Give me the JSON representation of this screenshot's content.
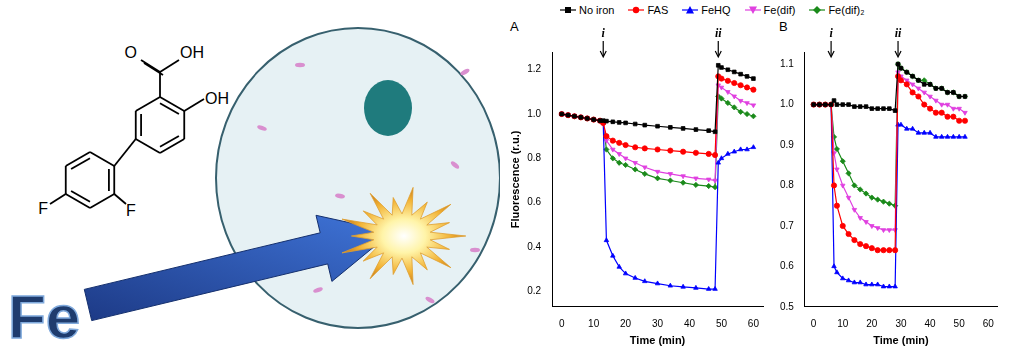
{
  "graphic": {
    "label": "Fe",
    "atoms": [
      "O",
      "OH",
      "OH",
      "F",
      "F"
    ]
  },
  "chart_data": [
    {
      "type": "line",
      "label": "A",
      "x_label": "Time (min)",
      "y_label": "Fluorescence (r.u.)",
      "grid": false,
      "xlim": [
        -3,
        63
      ],
      "xticks": [
        0,
        10,
        20,
        30,
        40,
        50,
        60
      ],
      "ylim": [
        0.13,
        1.28
      ],
      "yticks": [
        0.2,
        0.4,
        0.6,
        0.8,
        {
          "value": 1,
          "label": "1.0"
        },
        1.2
      ],
      "annotations": [
        {
          "text": "i",
          "x": 13
        },
        {
          "text": "ii",
          "x": 49
        }
      ],
      "x": [
        0,
        2,
        4,
        6,
        8,
        10,
        12,
        13,
        14,
        16,
        18,
        20,
        23,
        26,
        30,
        34,
        38,
        42,
        46,
        48,
        49,
        50,
        52,
        54,
        56,
        58,
        60
      ],
      "series": [
        {
          "name": "No iron",
          "color": "#000000",
          "marker": "square",
          "values": [
            1.0,
            0.995,
            0.99,
            0.985,
            0.98,
            0.975,
            0.97,
            0.97,
            0.968,
            0.965,
            0.962,
            0.96,
            0.955,
            0.95,
            0.945,
            0.94,
            0.935,
            0.93,
            0.925,
            0.92,
            1.22,
            1.21,
            1.2,
            1.19,
            1.18,
            1.17,
            1.16
          ]
        },
        {
          "name": "FAS",
          "color": "#ff0000",
          "marker": "circle",
          "values": [
            1.0,
            0.995,
            0.99,
            0.985,
            0.98,
            0.975,
            0.97,
            0.96,
            0.9,
            0.88,
            0.87,
            0.86,
            0.85,
            0.845,
            0.84,
            0.835,
            0.83,
            0.825,
            0.82,
            0.815,
            1.17,
            1.16,
            1.15,
            1.14,
            1.13,
            1.12,
            1.11
          ]
        },
        {
          "name": "FeHQ",
          "color": "#0000ff",
          "marker": "triangle",
          "values": [
            1.0,
            0.995,
            0.99,
            0.985,
            0.98,
            0.975,
            0.97,
            0.96,
            0.43,
            0.36,
            0.31,
            0.28,
            0.26,
            0.245,
            0.235,
            0.225,
            0.22,
            0.215,
            0.21,
            0.21,
            0.78,
            0.8,
            0.82,
            0.83,
            0.84,
            0.84,
            0.85
          ]
        },
        {
          "name": "Fe(dif)",
          "color": "#e040e0",
          "marker": "triangle_down",
          "values": [
            1.0,
            0.995,
            0.99,
            0.985,
            0.98,
            0.975,
            0.97,
            0.96,
            0.88,
            0.84,
            0.82,
            0.8,
            0.78,
            0.76,
            0.74,
            0.73,
            0.72,
            0.71,
            0.705,
            0.7,
            1.13,
            1.12,
            1.1,
            1.08,
            1.06,
            1.05,
            1.04
          ]
        },
        {
          "name": "Fe(dif)₂",
          "color": "#1a8a1a",
          "marker": "diamond",
          "values": [
            1.0,
            0.995,
            0.99,
            0.985,
            0.98,
            0.975,
            0.97,
            0.96,
            0.84,
            0.8,
            0.78,
            0.77,
            0.75,
            0.73,
            0.71,
            0.7,
            0.69,
            0.68,
            0.675,
            0.67,
            1.08,
            1.07,
            1.05,
            1.03,
            1.01,
            1.0,
            0.99
          ]
        }
      ]
    },
    {
      "type": "line",
      "label": "B",
      "x_label": "Time (min)",
      "grid": false,
      "legend": "top",
      "xlim": [
        -3,
        63
      ],
      "xticks": [
        0,
        10,
        20,
        30,
        40,
        50,
        60
      ],
      "ylim": [
        0.5,
        1.13
      ],
      "yticks": [
        0.5,
        0.6,
        0.7,
        0.8,
        0.9,
        {
          "value": 1,
          "label": "1.0"
        },
        1.1
      ],
      "annotations": [
        {
          "text": "i",
          "x": 6
        },
        {
          "text": "ii",
          "x": 29
        }
      ],
      "x": [
        0,
        2,
        4,
        6,
        7,
        8,
        10,
        12,
        14,
        16,
        18,
        20,
        22,
        24,
        26,
        28,
        29,
        30,
        32,
        34,
        36,
        38,
        40,
        42,
        44,
        46,
        48,
        50,
        52
      ],
      "series": [
        {
          "name": "No iron",
          "color": "#000000",
          "marker": "square",
          "values": [
            1.0,
            1.0,
            1.0,
            1.0,
            1.01,
            1.0,
            1.0,
            1.0,
            0.995,
            0.995,
            0.995,
            0.99,
            0.99,
            0.99,
            0.99,
            0.985,
            1.1,
            1.09,
            1.08,
            1.07,
            1.06,
            1.05,
            1.05,
            1.04,
            1.04,
            1.03,
            1.03,
            1.02,
            1.02
          ]
        },
        {
          "name": "FAS",
          "color": "#ff0000",
          "marker": "circle",
          "values": [
            1.0,
            1.0,
            1.0,
            1.0,
            0.8,
            0.75,
            0.7,
            0.68,
            0.665,
            0.655,
            0.65,
            0.645,
            0.64,
            0.64,
            0.64,
            0.64,
            1.07,
            1.06,
            1.05,
            1.03,
            1.02,
            1.0,
            0.99,
            0.98,
            0.98,
            0.97,
            0.97,
            0.96,
            0.96
          ]
        },
        {
          "name": "FeHQ",
          "color": "#0000ff",
          "marker": "triangle",
          "values": [
            1.0,
            1.0,
            1.0,
            1.0,
            0.6,
            0.585,
            0.57,
            0.565,
            0.56,
            0.56,
            0.555,
            0.555,
            0.555,
            0.55,
            0.55,
            0.55,
            0.95,
            0.95,
            0.94,
            0.94,
            0.93,
            0.93,
            0.93,
            0.92,
            0.92,
            0.92,
            0.92,
            0.92,
            0.92
          ]
        },
        {
          "name": "Fe(dif)",
          "color": "#e040e0",
          "marker": "triangle_down",
          "values": [
            1.0,
            1.0,
            1.0,
            1.0,
            0.88,
            0.84,
            0.8,
            0.77,
            0.74,
            0.72,
            0.71,
            0.7,
            0.695,
            0.69,
            0.69,
            0.69,
            1.08,
            1.07,
            1.06,
            1.05,
            1.04,
            1.03,
            1.02,
            1.01,
            1.0,
            1.0,
            0.99,
            0.99,
            0.98
          ]
        },
        {
          "name": "Fe(dif)₂",
          "color": "#1a8a1a",
          "marker": "diamond",
          "values": [
            1.0,
            1.0,
            1.0,
            1.0,
            0.92,
            0.89,
            0.86,
            0.83,
            0.8,
            0.79,
            0.78,
            0.77,
            0.765,
            0.76,
            0.755,
            0.75,
            1.1,
            1.09,
            1.08,
            1.07,
            1.06,
            1.06,
            1.05,
            1.04,
            1.04,
            1.03,
            1.03,
            1.02,
            1.02
          ]
        }
      ]
    }
  ]
}
